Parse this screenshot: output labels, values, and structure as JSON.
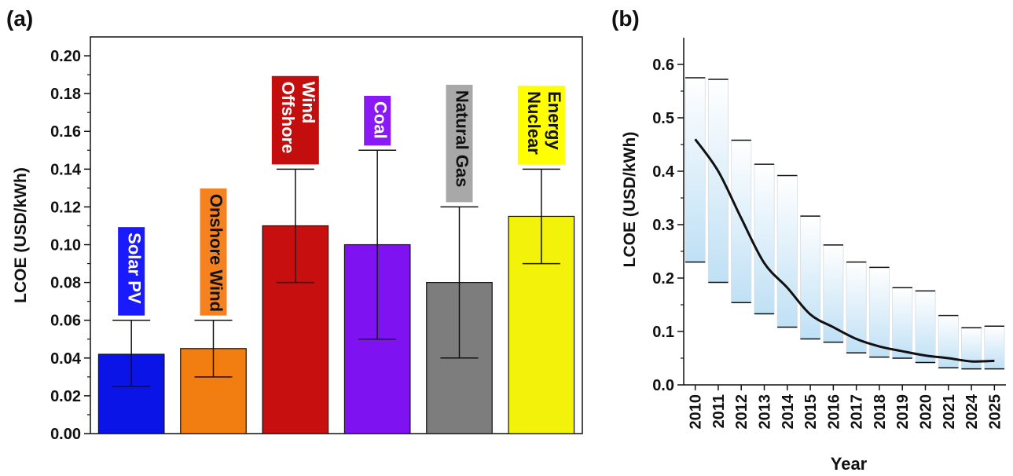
{
  "panels": {
    "a_label": "(a)",
    "b_label": "(b)"
  },
  "chart_data": [
    {
      "type": "bar",
      "ylabel": "LCOE (USD/kWh)",
      "xlabel": "",
      "ylim": [
        0,
        0.21
      ],
      "y_ticks": [
        "0.00",
        "0.02",
        "0.04",
        "0.06",
        "0.08",
        "0.10",
        "0.12",
        "0.14",
        "0.16",
        "0.18",
        "0.20"
      ],
      "categories": [
        "Solar PV",
        "Onshore Wind",
        "Offshore Wind",
        "Coal",
        "Natural Gas",
        "Nuclear Energy"
      ],
      "label_lines": [
        [
          "Solar PV"
        ],
        [
          "Onshore Wind"
        ],
        [
          "Offshore",
          "Wind"
        ],
        [
          "Coal"
        ],
        [
          "Natural Gas"
        ],
        [
          "Nuclear",
          "Energy"
        ]
      ],
      "values": [
        0.042,
        0.045,
        0.11,
        0.1,
        0.08,
        0.115
      ],
      "err_low": [
        0.025,
        0.03,
        0.08,
        0.05,
        0.04,
        0.09
      ],
      "err_high": [
        0.06,
        0.06,
        0.14,
        0.15,
        0.12,
        0.14
      ],
      "colors": [
        "#0a14e6",
        "#f27d10",
        "#c80f0f",
        "#7f12f0",
        "#7d7d7d",
        "#f2f20a"
      ],
      "label_colors": [
        "#1a1aff",
        "#f5821f",
        "#c40e0e",
        "#8a1af5",
        "#a8a8a8",
        "#ffff00"
      ],
      "label_text_colors": [
        "#ffffff",
        "#111111",
        "#ffffff",
        "#ffffff",
        "#111111",
        "#111111"
      ],
      "grid": false
    },
    {
      "type": "line",
      "ylabel": "LCOE (USD/kWh)",
      "xlabel": "Year",
      "ylim": [
        0,
        0.65
      ],
      "y_ticks": [
        "0.0",
        "0.1",
        "0.2",
        "0.3",
        "0.4",
        "0.5",
        "0.6"
      ],
      "categories": [
        "2010",
        "2011",
        "2012",
        "2013",
        "2014",
        "2015",
        "2016",
        "2017",
        "2018",
        "2019",
        "2020",
        "2021",
        "2024",
        "2025"
      ],
      "range_high": [
        0.575,
        0.572,
        0.458,
        0.413,
        0.392,
        0.316,
        0.262,
        0.23,
        0.22,
        0.182,
        0.176,
        0.13,
        0.107,
        0.11
      ],
      "range_low": [
        0.23,
        0.192,
        0.154,
        0.133,
        0.108,
        0.086,
        0.08,
        0.06,
        0.052,
        0.05,
        0.042,
        0.032,
        0.03,
        0.03
      ],
      "values": [
        0.46,
        0.4,
        0.312,
        0.228,
        0.182,
        0.132,
        0.108,
        0.086,
        0.072,
        0.063,
        0.055,
        0.05,
        0.044,
        0.045
      ],
      "range_fill": "#bfe0f5",
      "line_color": "#111111",
      "grid": false
    }
  ]
}
